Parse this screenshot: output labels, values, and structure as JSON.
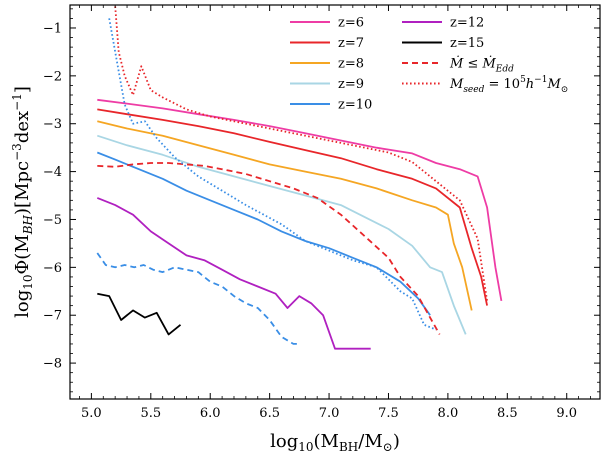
{
  "chart_data": {
    "type": "line",
    "xlabel": "log10(MBH/M⊙)",
    "ylabel": "log10Φ(MBH)[Mpc−3dex−1]",
    "xlim": [
      4.82,
      9.28
    ],
    "ylim": [
      -8.75,
      -0.52
    ],
    "xticks": [
      5.0,
      5.5,
      6.0,
      6.5,
      7.0,
      7.5,
      8.0,
      8.5,
      9.0
    ],
    "yticks": [
      -1,
      -2,
      -3,
      -4,
      -5,
      -6,
      -7,
      -8
    ],
    "xtick_labels": [
      "5.0",
      "5.5",
      "6.0",
      "6.5",
      "7.0",
      "7.5",
      "8.0",
      "8.5",
      "9.0"
    ],
    "ytick_labels": [
      "−1",
      "−2",
      "−3",
      "−4",
      "−5",
      "−6",
      "−7",
      "−8"
    ],
    "grid": false,
    "legend": "top-right",
    "series": [
      {
        "name": "z=6",
        "color": "#ee3ca5",
        "style": "solid",
        "x": [
          5.05,
          5.3,
          5.6,
          5.9,
          6.2,
          6.5,
          6.8,
          7.1,
          7.4,
          7.7,
          7.9,
          8.1,
          8.25,
          8.33,
          8.4,
          8.45
        ],
        "y": [
          -2.5,
          -2.58,
          -2.68,
          -2.8,
          -2.92,
          -3.05,
          -3.2,
          -3.35,
          -3.5,
          -3.62,
          -3.82,
          -3.95,
          -4.1,
          -4.75,
          -6.0,
          -6.7
        ]
      },
      {
        "name": "z=7",
        "color": "#e8262a",
        "style": "solid",
        "x": [
          5.05,
          5.3,
          5.6,
          5.9,
          6.2,
          6.5,
          6.8,
          7.1,
          7.4,
          7.7,
          7.9,
          8.1,
          8.2,
          8.28,
          8.33
        ],
        "y": [
          -2.7,
          -2.8,
          -2.92,
          -3.05,
          -3.2,
          -3.38,
          -3.55,
          -3.72,
          -3.95,
          -4.15,
          -4.35,
          -4.75,
          -5.6,
          -6.2,
          -6.8
        ]
      },
      {
        "name": "z=8",
        "color": "#f5a623",
        "style": "solid",
        "x": [
          5.05,
          5.3,
          5.6,
          5.9,
          6.2,
          6.5,
          6.8,
          7.1,
          7.4,
          7.7,
          7.9,
          8.0,
          8.05,
          8.12,
          8.2
        ],
        "y": [
          -2.95,
          -3.1,
          -3.25,
          -3.45,
          -3.65,
          -3.85,
          -4.0,
          -4.15,
          -4.35,
          -4.6,
          -4.75,
          -4.9,
          -5.5,
          -6.0,
          -6.9
        ]
      },
      {
        "name": "z=9",
        "color": "#a9d6e4",
        "style": "solid",
        "x": [
          5.05,
          5.3,
          5.6,
          5.9,
          6.2,
          6.5,
          6.8,
          7.1,
          7.3,
          7.5,
          7.7,
          7.85,
          7.95,
          8.05,
          8.15
        ],
        "y": [
          -3.25,
          -3.45,
          -3.65,
          -3.9,
          -4.1,
          -4.3,
          -4.5,
          -4.7,
          -4.95,
          -5.2,
          -5.55,
          -6.0,
          -6.1,
          -6.8,
          -7.4
        ]
      },
      {
        "name": "z=10",
        "color": "#3a8ee6",
        "style": "solid",
        "x": [
          5.05,
          5.2,
          5.4,
          5.6,
          5.8,
          6.0,
          6.2,
          6.4,
          6.6,
          6.8,
          7.0,
          7.2,
          7.4,
          7.6,
          7.75,
          7.85
        ],
        "y": [
          -3.6,
          -3.75,
          -3.95,
          -4.15,
          -4.4,
          -4.6,
          -4.8,
          -5.0,
          -5.25,
          -5.45,
          -5.6,
          -5.8,
          -6.0,
          -6.3,
          -6.65,
          -7.0
        ]
      },
      {
        "name": "z=12",
        "color": "#b020c0",
        "style": "solid",
        "x": [
          5.05,
          5.2,
          5.35,
          5.5,
          5.65,
          5.8,
          5.95,
          6.1,
          6.25,
          6.4,
          6.55,
          6.65,
          6.75,
          6.85,
          6.95,
          7.05,
          7.15,
          7.25,
          7.35
        ],
        "y": [
          -4.55,
          -4.7,
          -4.9,
          -5.25,
          -5.5,
          -5.75,
          -5.85,
          -6.05,
          -6.25,
          -6.4,
          -6.55,
          -6.85,
          -6.6,
          -6.75,
          -7.0,
          -7.7,
          -7.7,
          -7.7,
          -7.7
        ]
      },
      {
        "name": "z=15",
        "color": "#000000",
        "style": "solid",
        "x": [
          5.05,
          5.15,
          5.25,
          5.35,
          5.45,
          5.55,
          5.65,
          5.75
        ],
        "y": [
          -6.55,
          -6.6,
          -7.1,
          -6.9,
          -7.05,
          -6.95,
          -7.4,
          -7.2
        ]
      },
      {
        "name": "Ṁ ≤ Ṁ_Edd",
        "color": "#e8262a",
        "style": "dashed",
        "x": [
          5.05,
          5.2,
          5.35,
          5.5,
          5.65,
          5.8,
          5.95,
          6.1,
          6.3,
          6.5,
          6.7,
          6.9,
          7.1,
          7.3,
          7.5,
          7.6,
          7.75,
          7.85,
          7.93
        ],
        "y": [
          -3.88,
          -3.9,
          -3.85,
          -3.82,
          -3.82,
          -3.85,
          -3.88,
          -3.95,
          -4.05,
          -4.2,
          -4.35,
          -4.55,
          -4.9,
          -5.35,
          -5.8,
          -6.2,
          -6.6,
          -7.05,
          -7.4
        ]
      },
      {
        "name": "z=10 (Ṁ ≤ Ṁ_Edd)",
        "color": "#3a8ee6",
        "style": "dashed",
        "x": [
          5.05,
          5.12,
          5.2,
          5.28,
          5.36,
          5.44,
          5.52,
          5.6,
          5.7,
          5.8,
          5.9,
          6.0,
          6.1,
          6.2,
          6.3,
          6.4,
          6.5,
          6.6,
          6.7,
          6.75
        ],
        "y": [
          -5.7,
          -5.95,
          -6.0,
          -5.95,
          -6.0,
          -5.95,
          -6.05,
          -6.1,
          -6.0,
          -6.05,
          -6.1,
          -6.3,
          -6.4,
          -6.6,
          -6.75,
          -6.85,
          -7.1,
          -7.45,
          -7.6,
          -7.6
        ]
      },
      {
        "name": "M_seed = 10^5 h^-1 M⊙",
        "color": "#e8262a",
        "style": "dotted",
        "x": [
          5.2,
          5.23,
          5.28,
          5.35,
          5.42,
          5.5,
          5.6,
          5.8,
          6.0,
          6.3,
          6.6,
          6.9,
          7.2,
          7.5,
          7.7,
          7.9,
          8.1,
          8.25,
          8.33
        ],
        "y": [
          -0.55,
          -1.5,
          -2.0,
          -2.4,
          -1.8,
          -2.3,
          -2.45,
          -2.7,
          -2.85,
          -3.0,
          -3.15,
          -3.3,
          -3.45,
          -3.6,
          -3.8,
          -4.2,
          -4.6,
          -5.4,
          -6.7
        ]
      },
      {
        "name": "z=10 (M_seed)",
        "color": "#3a8ee6",
        "style": "dotted",
        "x": [
          5.15,
          5.2,
          5.28,
          5.35,
          5.45,
          5.55,
          5.7,
          5.9,
          6.1,
          6.3,
          6.6,
          6.8,
          7.0,
          7.2,
          7.4,
          7.6,
          7.7,
          7.8,
          7.9
        ],
        "y": [
          -0.8,
          -1.5,
          -2.6,
          -3.0,
          -2.95,
          -3.3,
          -3.7,
          -4.1,
          -4.4,
          -4.7,
          -5.1,
          -5.45,
          -5.65,
          -5.85,
          -6.0,
          -6.5,
          -6.65,
          -7.2,
          -7.3
        ]
      }
    ]
  },
  "legend": {
    "col1": [
      {
        "label": "z=6",
        "color": "#ee3ca5",
        "style": "solid"
      },
      {
        "label": "z=7",
        "color": "#e8262a",
        "style": "solid"
      },
      {
        "label": "z=8",
        "color": "#f5a623",
        "style": "solid"
      },
      {
        "label": "z=9",
        "color": "#a9d6e4",
        "style": "solid"
      },
      {
        "label": "z=10",
        "color": "#3a8ee6",
        "style": "solid"
      }
    ],
    "col2": [
      {
        "label": "z=12",
        "color": "#b020c0",
        "style": "solid"
      },
      {
        "label": "z=15",
        "color": "#000000",
        "style": "solid"
      },
      {
        "label": "Ṁ ≤ Ṁ",
        "sub": "Edd",
        "color": "#e8262a",
        "style": "dashed"
      },
      {
        "label": "M",
        "sub": "seed",
        "rest": " = 10",
        "sup": "5",
        "rest2": "h",
        "sup2": "−1",
        "rest3": "M",
        "sub2": "⊙",
        "color": "#e8262a",
        "style": "dotted"
      }
    ]
  }
}
